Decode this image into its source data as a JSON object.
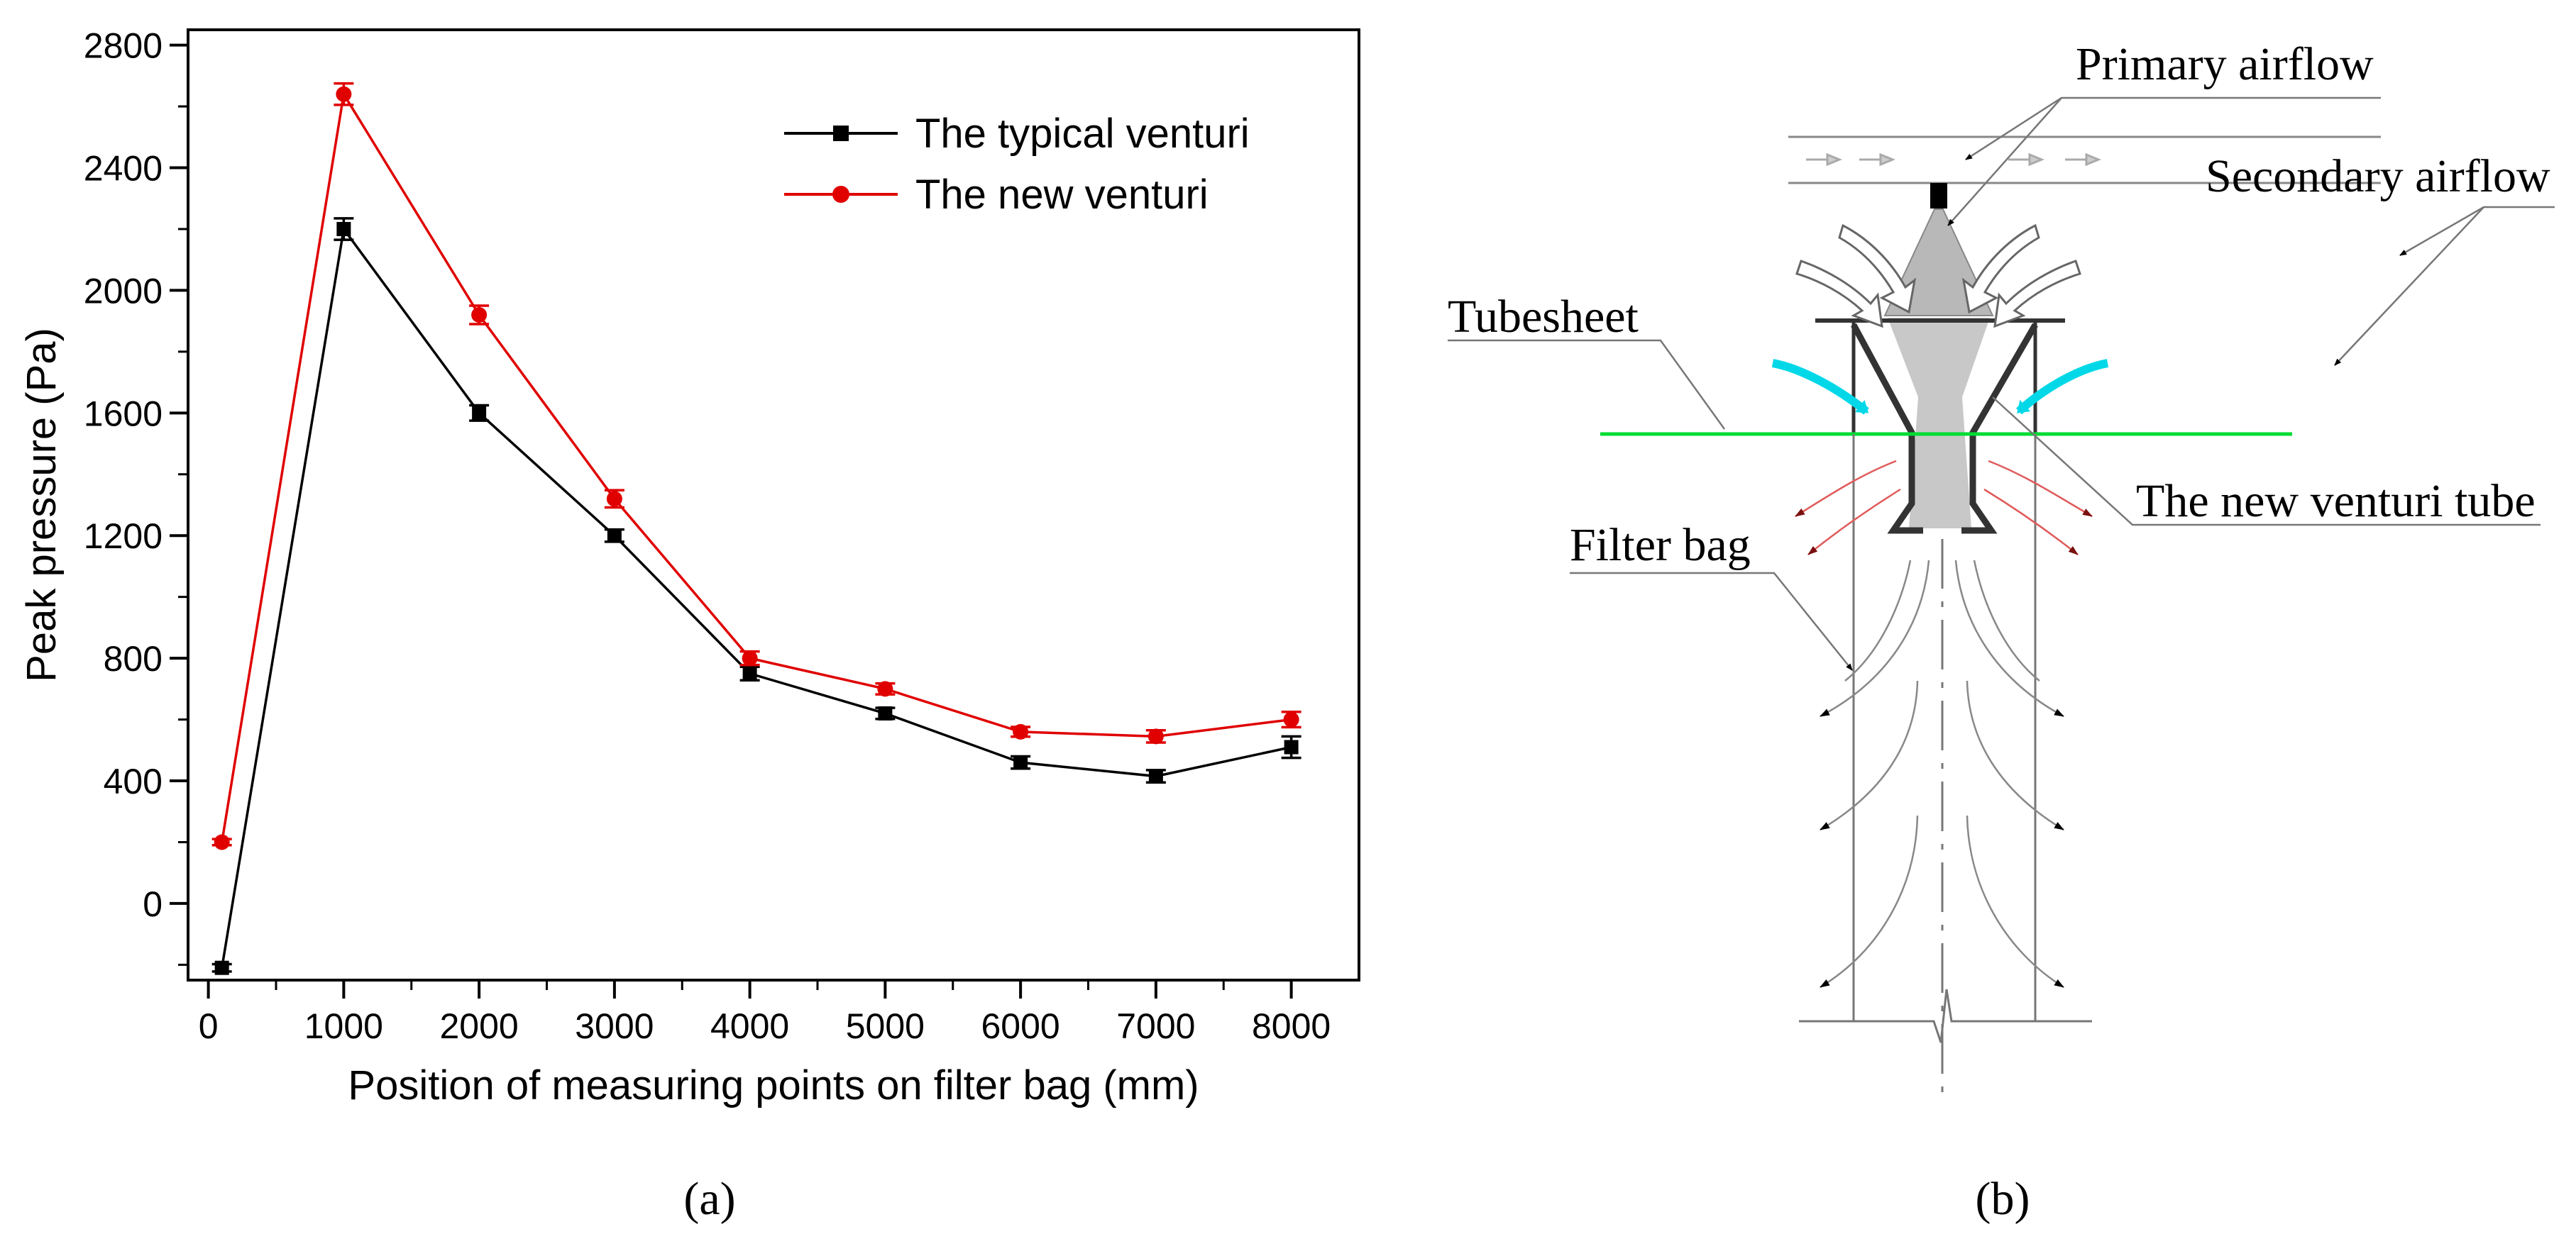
{
  "chart_data": {
    "type": "line",
    "panel_label": "(a)",
    "title": "",
    "xlabel": "Position of measuring points on filter bag (mm)",
    "ylabel": "Peak pressure (Pa)",
    "xlim": [
      -150,
      8500
    ],
    "ylim": [
      -250,
      2850
    ],
    "x_ticks": [
      0,
      1000,
      2000,
      3000,
      4000,
      5000,
      6000,
      7000,
      8000
    ],
    "y_ticks": [
      0,
      400,
      800,
      1200,
      1600,
      2000,
      2400,
      2800
    ],
    "x_tick_labels": [
      "0",
      "1000",
      "2000",
      "3000",
      "4000",
      "5000",
      "6000",
      "7000",
      "8000"
    ],
    "y_tick_labels": [
      "0",
      "400",
      "800",
      "1200",
      "1600",
      "2000",
      "2400",
      "2800"
    ],
    "legend_position": "top-right",
    "grid": false,
    "x": [
      100,
      1000,
      2000,
      3000,
      4000,
      5000,
      6000,
      7000,
      8000
    ],
    "series": [
      {
        "name": "The typical venturi",
        "color": "#000000",
        "marker": "square",
        "values": [
          -210,
          2200,
          1600,
          1200,
          750,
          620,
          460,
          415,
          510
        ],
        "errors": [
          12,
          35,
          25,
          20,
          22,
          18,
          20,
          20,
          35
        ]
      },
      {
        "name": "The new venturi",
        "color": "#e00000",
        "marker": "circle",
        "values": [
          200,
          2640,
          1920,
          1320,
          800,
          700,
          560,
          545,
          600
        ],
        "errors": [
          10,
          35,
          30,
          28,
          22,
          18,
          16,
          20,
          25
        ]
      }
    ]
  },
  "diagram": {
    "panel_label": "(b)",
    "labels": {
      "primary": "Primary airflow",
      "secondary": "Secondary airflow",
      "tubesheet": "Tubesheet",
      "venturi": "The new venturi tube",
      "bag": "Filter bag"
    },
    "colors": {
      "tubesheet_line": "#00dd33",
      "secondary_arrow": "#00d8e8",
      "exit_flow": "#e05a5a"
    }
  }
}
